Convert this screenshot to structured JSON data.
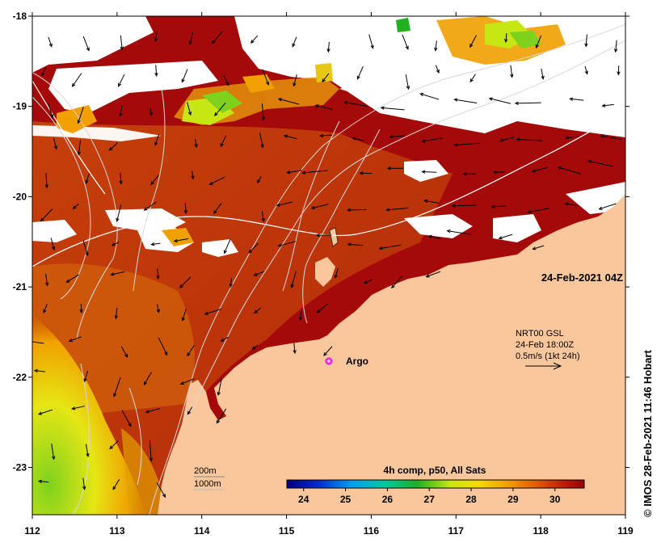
{
  "map": {
    "timestamp": "24-Feb-2021 04Z",
    "current_info": {
      "line1": "NRT00 GSL",
      "line2": "24-Feb 18:00Z",
      "line3": "0.5m/s (1kt 24h)"
    },
    "argo_label": "Argo",
    "depth_legend": {
      "contour1": "200m",
      "contour2": "1000m"
    },
    "colorbar": {
      "title": "4h comp, p50, All Sats",
      "ticks": [
        "24",
        "25",
        "26",
        "27",
        "28",
        "29",
        "30"
      ],
      "min": 23.6,
      "max": 30.7
    },
    "copyright": "© IMOS 28-Feb-2021 11:46 Hobart",
    "lon_ticks": [
      "112",
      "113",
      "114",
      "115",
      "116",
      "117",
      "118",
      "119"
    ],
    "lat_ticks": [
      "-18",
      "-19",
      "-20",
      "-21",
      "-22",
      "-23"
    ],
    "colors": {
      "land": "#f9c79b",
      "warm_sst": "#a50a0a",
      "cloud": "#ffffff"
    }
  }
}
